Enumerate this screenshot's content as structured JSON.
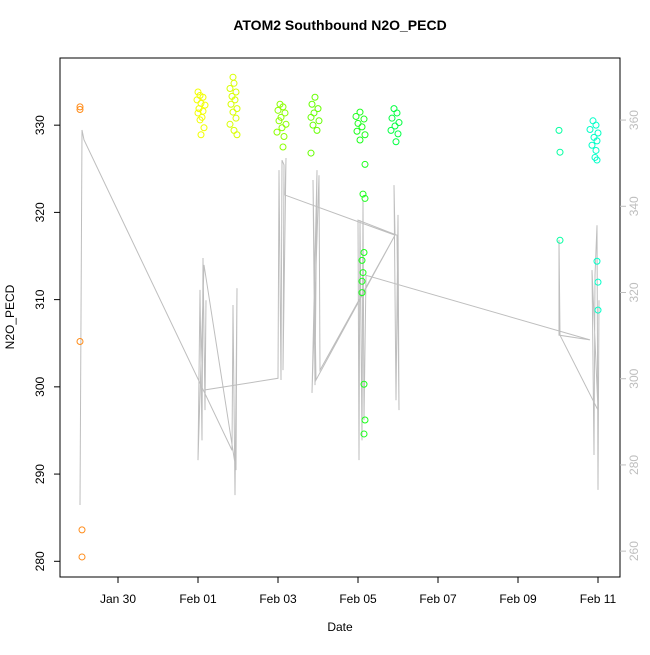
{
  "chart_data": {
    "type": "scatter",
    "title": "ATOM2 Southbound N2O_PECD",
    "x_label": "Date",
    "y_label": "N2O_PECD",
    "xlim": [
      28.55,
      42.55
    ],
    "xticks": [
      {
        "value": 30,
        "label": "Jan 30"
      },
      {
        "value": 32,
        "label": "Feb 01"
      },
      {
        "value": 34,
        "label": "Feb 03"
      },
      {
        "value": 36,
        "label": "Feb 05"
      },
      {
        "value": 38,
        "label": "Feb 07"
      },
      {
        "value": 40,
        "label": "Feb 09"
      },
      {
        "value": 42,
        "label": "Feb 11"
      }
    ],
    "ylim": [
      278.2,
      337.7
    ],
    "yticks": [
      280,
      290,
      300,
      310,
      320,
      330
    ],
    "y2lim": [
      254.0,
      374.4
    ],
    "y2ticks": [
      260,
      280,
      300,
      320,
      340,
      360
    ],
    "y2_color": "#bebebe",
    "series": [
      {
        "color": "#ff8c1a",
        "style": "points",
        "x": [
          29.05,
          29.05,
          29.05,
          29.1,
          29.1
        ],
        "values": [
          332.1,
          331.8,
          305.2,
          283.6,
          280.5
        ]
      },
      {
        "color": "#f2ff00",
        "style": "points",
        "x": [
          32.0,
          32.05,
          32.125,
          31.975,
          32.075,
          32.175,
          32.025,
          32.125,
          32.0,
          32.1,
          32.05,
          32.15,
          32.075
        ],
        "values": [
          333.8,
          333.4,
          333.2,
          332.9,
          332.5,
          332.3,
          331.9,
          331.6,
          331.4,
          330.9,
          330.6,
          329.7,
          328.9
        ]
      },
      {
        "color": "#d9ff00",
        "style": "points",
        "x": [
          32.875,
          32.9,
          32.8,
          32.95,
          32.85,
          32.925,
          32.825,
          32.975,
          32.875,
          32.95,
          32.8,
          32.9,
          32.975
        ],
        "values": [
          335.5,
          334.8,
          334.2,
          333.8,
          333.3,
          332.9,
          332.4,
          331.9,
          331.5,
          330.8,
          330.1,
          329.4,
          328.9
        ]
      },
      {
        "color": "#8cff00",
        "style": "points",
        "x": [
          34.05,
          34.125,
          34.0,
          34.175,
          34.075,
          34.025,
          34.2,
          34.1,
          33.975,
          34.15,
          34.125
        ],
        "values": [
          332.4,
          332.1,
          331.7,
          331.4,
          330.9,
          330.5,
          330.1,
          329.7,
          329.2,
          328.7,
          327.5
        ]
      },
      {
        "color": "#66ff00",
        "style": "points",
        "x": [
          34.925,
          34.85,
          35.0,
          34.9,
          34.825,
          35.025,
          34.875,
          34.975,
          34.825
        ],
        "values": [
          333.2,
          332.4,
          331.9,
          331.4,
          330.9,
          330.5,
          330.0,
          329.4,
          326.8
        ]
      },
      {
        "color": "#1aff1a",
        "style": "points",
        "x": [
          36.05,
          35.95,
          36.15,
          36.0,
          36.1,
          35.975,
          36.175,
          36.05,
          36.175,
          36.125,
          36.175,
          36.15,
          36.1,
          36.125,
          36.1,
          36.1,
          36.15,
          36.175,
          36.15
        ],
        "values": [
          331.5,
          331.0,
          330.7,
          330.2,
          329.8,
          329.3,
          328.9,
          328.3,
          325.5,
          322.1,
          321.6,
          315.4,
          314.5,
          313.1,
          312.1,
          310.8,
          300.3,
          296.2,
          294.6
        ]
      },
      {
        "color": "#00ff40",
        "style": "points",
        "x": [
          36.9,
          36.975,
          36.85,
          37.025,
          36.925,
          36.825,
          37.0,
          36.95
        ],
        "values": [
          331.9,
          331.4,
          330.8,
          330.3,
          329.9,
          329.4,
          329.0,
          328.1
        ]
      },
      {
        "color": "#00ffa0",
        "style": "points",
        "x": [
          41.025,
          41.05,
          41.05
        ],
        "values": [
          329.4,
          326.9,
          316.8
        ]
      },
      {
        "color": "#00ffc8",
        "style": "points",
        "x": [
          41.875,
          41.95,
          41.8,
          42.0,
          41.9,
          41.975,
          41.85,
          41.95,
          41.925,
          41.975,
          41.975,
          42.0,
          42.0
        ],
        "values": [
          330.5,
          330.0,
          329.5,
          329.1,
          328.6,
          328.2,
          327.7,
          327.1,
          326.3,
          326.0,
          314.4,
          312.0,
          308.8
        ]
      },
      {
        "color": "#bebebe",
        "style": "line",
        "axis": "y2",
        "x": [
          29.05,
          29.1,
          29.15,
          32.85,
          32.875,
          32.925,
          32.975,
          32.95,
          32.15,
          32.0,
          32.05,
          32.1,
          32.125,
          32.175,
          32.2,
          32.175,
          34.0,
          34.025,
          34.075,
          34.1,
          34.15,
          34.125,
          34.2,
          34.175,
          36.925,
          34.95,
          34.875,
          34.925,
          34.975,
          34.85,
          35.025,
          35.05,
          36.925,
          36.9,
          36.95,
          37.0,
          37.025,
          36.975,
          36.0,
          36.025,
          36.05,
          36.1,
          36.125,
          36.15,
          36.2,
          41.8,
          41.025,
          41.025,
          41.05,
          42.0,
          41.85,
          41.9,
          41.925,
          41.975,
          42.0,
          42.025
        ],
        "values": [
          270.7,
          357.7,
          355.4,
          283.4,
          317.1,
          273.0,
          321.0,
          278.8,
          326.4,
          281.1,
          320.6,
          285.7,
          328.0,
          292.7,
          318.2,
          297.4,
          300.1,
          348.4,
          299.7,
          350.7,
          349.6,
          302.0,
          351.2,
          342.6,
          333.3,
          299.7,
          346.1,
          298.5,
          348.4,
          296.7,
          347.2,
          302.0,
          333.3,
          344.9,
          295.0,
          338.0,
          292.7,
          333.3,
          336.8,
          281.1,
          336.8,
          285.7,
          341.4,
          290.4,
          324.0,
          309.0,
          310.1,
          332.2,
          310.1,
          292.7,
          325.2,
          282.3,
          324.0,
          335.6,
          274.2,
          318.2
        ]
      }
    ]
  }
}
